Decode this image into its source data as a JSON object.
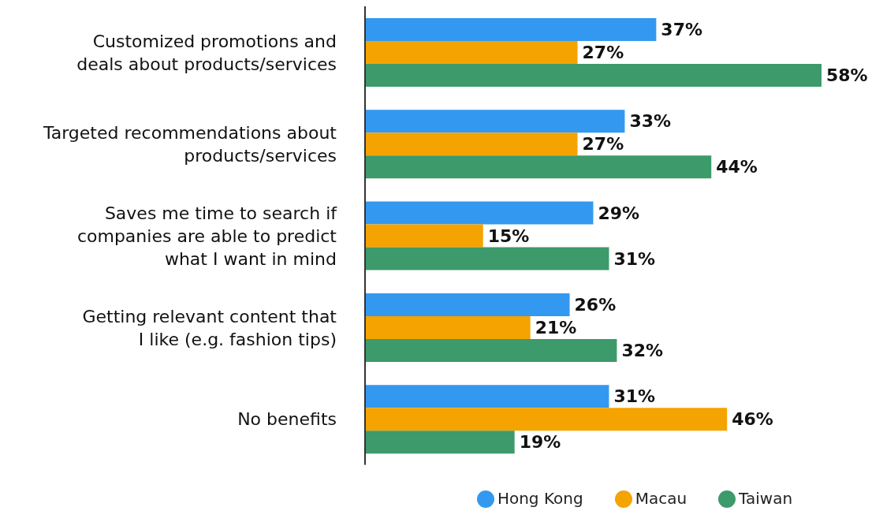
{
  "chart_data": {
    "type": "bar",
    "orientation": "horizontal",
    "categories": [
      "Customized promotions and deals about products/services",
      "Targeted recommendations about products/services",
      "Saves me time to search if companies are able to predict what I want in mind",
      "Getting relevant content that I like (e.g. fashion tips)",
      "No benefits"
    ],
    "series": [
      {
        "name": "Hong Kong",
        "color": "#3399f0",
        "values": [
          37,
          33,
          29,
          26,
          31
        ],
        "value_labels": [
          "37%",
          "33%",
          "29%",
          "26%",
          "31%"
        ]
      },
      {
        "name": "Macau",
        "color": "#f5a300",
        "values": [
          27,
          27,
          15,
          21,
          46
        ],
        "value_labels": [
          "27%",
          "27%",
          "15%",
          "21%",
          "46%"
        ]
      },
      {
        "name": "Taiwan",
        "color": "#3d9a6a",
        "values": [
          58,
          44,
          31,
          32,
          19
        ],
        "value_labels": [
          "58%",
          "44%",
          "31%",
          "32%",
          "19%"
        ]
      }
    ],
    "legend": "bottom",
    "grid": false
  }
}
